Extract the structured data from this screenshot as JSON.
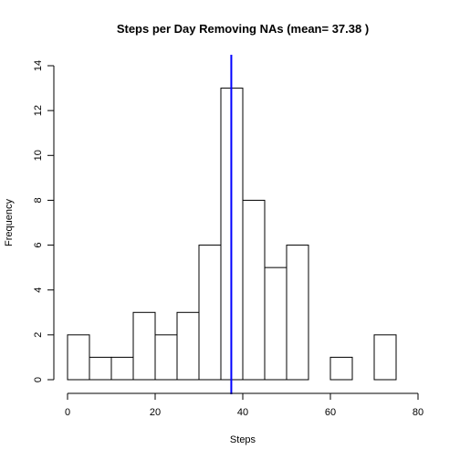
{
  "chart_data": {
    "type": "bar",
    "subtype": "histogram",
    "title": "Steps per Day Removing NAs (mean= 37.38 )",
    "xlabel": "Steps",
    "ylabel": "Frequency",
    "bin_width": 5,
    "bins": [
      {
        "start": 0,
        "end": 5,
        "count": 2
      },
      {
        "start": 5,
        "end": 10,
        "count": 1
      },
      {
        "start": 10,
        "end": 15,
        "count": 1
      },
      {
        "start": 15,
        "end": 20,
        "count": 3
      },
      {
        "start": 20,
        "end": 25,
        "count": 2
      },
      {
        "start": 25,
        "end": 30,
        "count": 3
      },
      {
        "start": 30,
        "end": 35,
        "count": 6
      },
      {
        "start": 35,
        "end": 40,
        "count": 13
      },
      {
        "start": 40,
        "end": 45,
        "count": 8
      },
      {
        "start": 45,
        "end": 50,
        "count": 5
      },
      {
        "start": 50,
        "end": 55,
        "count": 6
      },
      {
        "start": 55,
        "end": 60,
        "count": 0
      },
      {
        "start": 60,
        "end": 65,
        "count": 1
      },
      {
        "start": 65,
        "end": 70,
        "count": 0
      },
      {
        "start": 70,
        "end": 75,
        "count": 2
      }
    ],
    "mean": 37.38,
    "mean_line_color": "#0000ff",
    "bar_fill": "#ffffff",
    "bar_stroke": "#000000",
    "xlim": [
      0,
      80
    ],
    "ylim": [
      0,
      14
    ],
    "x_ticks": [
      "0",
      "20",
      "40",
      "60",
      "80"
    ],
    "y_ticks": [
      "0",
      "2",
      "4",
      "6",
      "8",
      "10",
      "12",
      "14"
    ],
    "grid": false,
    "legend": "none"
  }
}
